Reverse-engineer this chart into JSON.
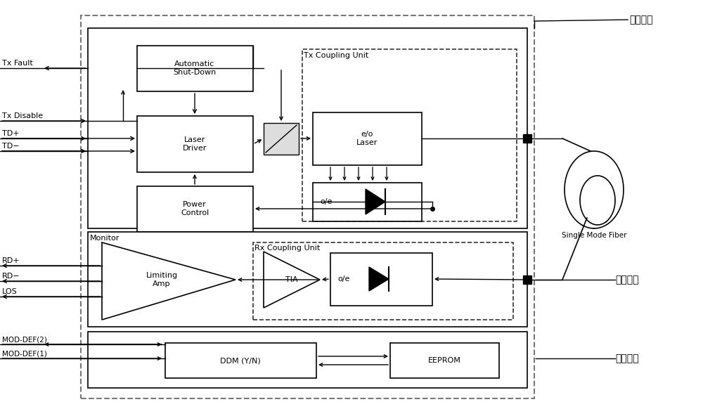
{
  "bg_color": "#ffffff",
  "line_color": "#000000",
  "fig_width": 10.0,
  "fig_height": 5.82,
  "labels": {
    "tx_fault": "Tx Fault",
    "tx_disable": "Tx Disable",
    "td_plus": "TD+",
    "td_minus": "TD−",
    "rd_plus": "RD+",
    "rd_minus": "RD−",
    "los": "LOS",
    "mod_def2": "MOD-DEF(2)",
    "mod_def1": "MOD-DEF(1)",
    "auto_shutdown": "Automatic\nShut-Down",
    "laser_driver": "Laser\nDriver",
    "power_control": "Power\nControl",
    "tx_coupling": "Tx Coupling Unit",
    "eo_laser": "e/o\nLaser",
    "oe_tx": "o/e",
    "monitor": "Monitor",
    "rx_coupling": "Rx Coupling Unit",
    "limiting_amp": "Limiting\nAmp",
    "tia": "TIA",
    "oe_rx": "o/e",
    "ddm": "DDM (Y/N)",
    "eeprom": "EEPROM",
    "single_mode_fiber": "Single Mode Fiber",
    "fasong": "发送单元",
    "jieshou": "接收单元",
    "kongzhi": "控制单元"
  }
}
